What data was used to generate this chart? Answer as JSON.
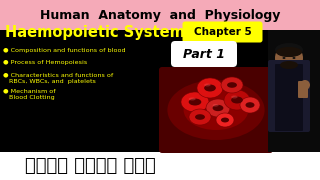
{
  "title_top": "Human  Anatomy  and  Physiology",
  "title_main": "Haemopoietic System",
  "chapter_label": "Chapter 5",
  "part_label": "Part 1",
  "bullets": [
    "● Composition and functions of blood",
    "● Process of Hemopoiesis",
    "● Characteristics and functions of\n   RBCs, WBCs, and  platelets",
    "● Mechanism of\n   Blood Clotting"
  ],
  "bottom_text": "आसान भाषा में",
  "bg_top_color": "#f5aab8",
  "bg_main_color": "#000000",
  "bg_bottom_color": "#ffffff",
  "title_top_color": "#000000",
  "title_main_color": "#ffff00",
  "chapter_bg": "#ffff00",
  "chapter_fg": "#000000",
  "part_bg": "#ffffff",
  "part_fg": "#000000",
  "bullet_color": "#ffff00",
  "bottom_text_color": "#000000",
  "figsize": [
    3.2,
    1.8
  ],
  "dpi": 100
}
